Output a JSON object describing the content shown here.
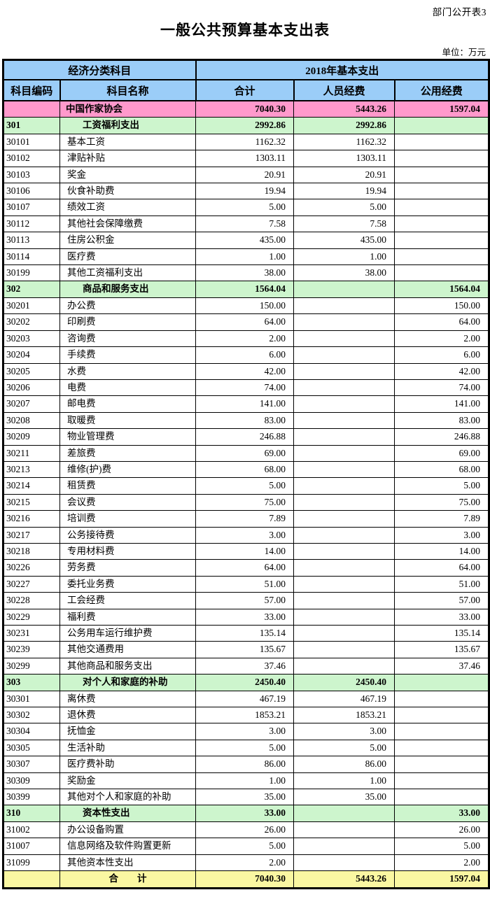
{
  "page": {
    "corner_label": "部门公开表3",
    "title": "一般公共预算基本支出表",
    "unit_label": "单位：万元"
  },
  "colors": {
    "header_blue": "#9bcdf8",
    "org_pink": "#ff99cc",
    "section_green": "#cdf5cd",
    "total_yellow": "#faf7a2",
    "grid_black": "#000000"
  },
  "table": {
    "header": {
      "group_left": "经济分类科目",
      "group_right": "2018年基本支出",
      "col_code": "科目编码",
      "col_name": "科目名称",
      "col_total": "合计",
      "col_personnel": "人员经费",
      "col_public": "公用经费"
    },
    "rows": [
      {
        "type": "org",
        "code": "",
        "name": "中国作家协会",
        "total": "7040.30",
        "personnel": "5443.26",
        "public": "1597.04"
      },
      {
        "type": "section",
        "code": "301",
        "name": "工资福利支出",
        "total": "2992.86",
        "personnel": "2992.86",
        "public": ""
      },
      {
        "type": "item",
        "code": "30101",
        "name": "基本工资",
        "total": "1162.32",
        "personnel": "1162.32",
        "public": ""
      },
      {
        "type": "item",
        "code": "30102",
        "name": "津贴补贴",
        "total": "1303.11",
        "personnel": "1303.11",
        "public": ""
      },
      {
        "type": "item",
        "code": "30103",
        "name": "奖金",
        "total": "20.91",
        "personnel": "20.91",
        "public": ""
      },
      {
        "type": "item",
        "code": "30106",
        "name": "伙食补助费",
        "total": "19.94",
        "personnel": "19.94",
        "public": ""
      },
      {
        "type": "item",
        "code": "30107",
        "name": "绩效工资",
        "total": "5.00",
        "personnel": "5.00",
        "public": ""
      },
      {
        "type": "item",
        "code": "30112",
        "name": "其他社会保障缴费",
        "total": "7.58",
        "personnel": "7.58",
        "public": ""
      },
      {
        "type": "item",
        "code": "30113",
        "name": "住房公积金",
        "total": "435.00",
        "personnel": "435.00",
        "public": ""
      },
      {
        "type": "item",
        "code": "30114",
        "name": "医疗费",
        "total": "1.00",
        "personnel": "1.00",
        "public": ""
      },
      {
        "type": "item",
        "code": "30199",
        "name": "其他工资福利支出",
        "total": "38.00",
        "personnel": "38.00",
        "public": ""
      },
      {
        "type": "section",
        "code": "302",
        "name": "商品和服务支出",
        "total": "1564.04",
        "personnel": "",
        "public": "1564.04"
      },
      {
        "type": "item",
        "code": "30201",
        "name": "办公费",
        "total": "150.00",
        "personnel": "",
        "public": "150.00"
      },
      {
        "type": "item",
        "code": "30202",
        "name": "印刷费",
        "total": "64.00",
        "personnel": "",
        "public": "64.00"
      },
      {
        "type": "item",
        "code": "30203",
        "name": "咨询费",
        "total": "2.00",
        "personnel": "",
        "public": "2.00"
      },
      {
        "type": "item",
        "code": "30204",
        "name": "手续费",
        "total": "6.00",
        "personnel": "",
        "public": "6.00"
      },
      {
        "type": "item",
        "code": "30205",
        "name": "水费",
        "total": "42.00",
        "personnel": "",
        "public": "42.00"
      },
      {
        "type": "item",
        "code": "30206",
        "name": "电费",
        "total": "74.00",
        "personnel": "",
        "public": "74.00"
      },
      {
        "type": "item",
        "code": "30207",
        "name": "邮电费",
        "total": "141.00",
        "personnel": "",
        "public": "141.00"
      },
      {
        "type": "item",
        "code": "30208",
        "name": "取暖费",
        "total": "83.00",
        "personnel": "",
        "public": "83.00"
      },
      {
        "type": "item",
        "code": "30209",
        "name": "物业管理费",
        "total": "246.88",
        "personnel": "",
        "public": "246.88"
      },
      {
        "type": "item",
        "code": "30211",
        "name": "差旅费",
        "total": "69.00",
        "personnel": "",
        "public": "69.00"
      },
      {
        "type": "item",
        "code": "30213",
        "name": "维修(护)费",
        "total": "68.00",
        "personnel": "",
        "public": "68.00"
      },
      {
        "type": "item",
        "code": "30214",
        "name": "租赁费",
        "total": "5.00",
        "personnel": "",
        "public": "5.00"
      },
      {
        "type": "item",
        "code": "30215",
        "name": "会议费",
        "total": "75.00",
        "personnel": "",
        "public": "75.00"
      },
      {
        "type": "item",
        "code": "30216",
        "name": "培训费",
        "total": "7.89",
        "personnel": "",
        "public": "7.89"
      },
      {
        "type": "item",
        "code": "30217",
        "name": "公务接待费",
        "total": "3.00",
        "personnel": "",
        "public": "3.00"
      },
      {
        "type": "item",
        "code": "30218",
        "name": "专用材料费",
        "total": "14.00",
        "personnel": "",
        "public": "14.00"
      },
      {
        "type": "item",
        "code": "30226",
        "name": "劳务费",
        "total": "64.00",
        "personnel": "",
        "public": "64.00"
      },
      {
        "type": "item",
        "code": "30227",
        "name": "委托业务费",
        "total": "51.00",
        "personnel": "",
        "public": "51.00"
      },
      {
        "type": "item",
        "code": "30228",
        "name": "工会经费",
        "total": "57.00",
        "personnel": "",
        "public": "57.00"
      },
      {
        "type": "item",
        "code": "30229",
        "name": "福利费",
        "total": "33.00",
        "personnel": "",
        "public": "33.00"
      },
      {
        "type": "item",
        "code": "30231",
        "name": "公务用车运行维护费",
        "total": "135.14",
        "personnel": "",
        "public": "135.14"
      },
      {
        "type": "item",
        "code": "30239",
        "name": "其他交通费用",
        "total": "135.67",
        "personnel": "",
        "public": "135.67"
      },
      {
        "type": "item",
        "code": "30299",
        "name": "其他商品和服务支出",
        "total": "37.46",
        "personnel": "",
        "public": "37.46"
      },
      {
        "type": "section",
        "code": "303",
        "name": "对个人和家庭的补助",
        "total": "2450.40",
        "personnel": "2450.40",
        "public": ""
      },
      {
        "type": "item",
        "code": "30301",
        "name": "离休费",
        "total": "467.19",
        "personnel": "467.19",
        "public": ""
      },
      {
        "type": "item",
        "code": "30302",
        "name": "退休费",
        "total": "1853.21",
        "personnel": "1853.21",
        "public": ""
      },
      {
        "type": "item",
        "code": "30304",
        "name": "抚恤金",
        "total": "3.00",
        "personnel": "3.00",
        "public": ""
      },
      {
        "type": "item",
        "code": "30305",
        "name": "生活补助",
        "total": "5.00",
        "personnel": "5.00",
        "public": ""
      },
      {
        "type": "item",
        "code": "30307",
        "name": "医疗费补助",
        "total": "86.00",
        "personnel": "86.00",
        "public": ""
      },
      {
        "type": "item",
        "code": "30309",
        "name": "奖励金",
        "total": "1.00",
        "personnel": "1.00",
        "public": ""
      },
      {
        "type": "item",
        "code": "30399",
        "name": "其他对个人和家庭的补助",
        "total": "35.00",
        "personnel": "35.00",
        "public": ""
      },
      {
        "type": "section",
        "code": "310",
        "name": "资本性支出",
        "total": "33.00",
        "personnel": "",
        "public": "33.00"
      },
      {
        "type": "item",
        "code": "31002",
        "name": "办公设备购置",
        "total": "26.00",
        "personnel": "",
        "public": "26.00"
      },
      {
        "type": "item",
        "code": "31007",
        "name": "信息网络及软件购置更新",
        "total": "5.00",
        "personnel": "",
        "public": "5.00"
      },
      {
        "type": "item",
        "code": "31099",
        "name": "其他资本性支出",
        "total": "2.00",
        "personnel": "",
        "public": "2.00"
      },
      {
        "type": "total",
        "code": "",
        "name": "合　　计",
        "total": "7040.30",
        "personnel": "5443.26",
        "public": "1597.04"
      }
    ]
  }
}
